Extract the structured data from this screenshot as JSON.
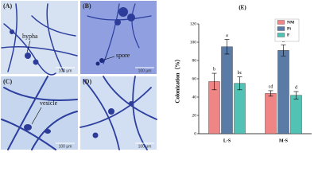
{
  "panels": [
    {
      "label": "(A)",
      "annotation": "hypha",
      "scale": "100 μm"
    },
    {
      "label": "(B)",
      "annotation": "spore",
      "scale": "100 μm"
    },
    {
      "label": "(C)",
      "annotation": "vesicle",
      "scale": "100 μm"
    },
    {
      "label": "(D)",
      "scale": "100 μm"
    }
  ],
  "chart_data": {
    "type": "bar",
    "title": "(E)",
    "y_label": "Colonization（%）",
    "categories": [
      "L-S",
      "M-S"
    ],
    "series": [
      {
        "name": "NM",
        "color": "#ef8585",
        "values": [
          57,
          44
        ],
        "errors": [
          9,
          3
        ],
        "letters": [
          "b",
          "cd"
        ]
      },
      {
        "name": "Pi",
        "color": "#5a7ba6",
        "values": [
          95,
          91
        ],
        "errors": [
          8,
          6
        ],
        "letters": [
          "a",
          "a"
        ]
      },
      {
        "name": "F",
        "color": "#52c2b5",
        "values": [
          55,
          42
        ],
        "errors": [
          7,
          4
        ],
        "letters": [
          "bc",
          "d"
        ]
      }
    ],
    "ylim": [
      0,
      120
    ],
    "yticks": [
      0,
      20,
      40,
      60,
      80,
      100,
      120
    ],
    "legend": "top-right"
  }
}
